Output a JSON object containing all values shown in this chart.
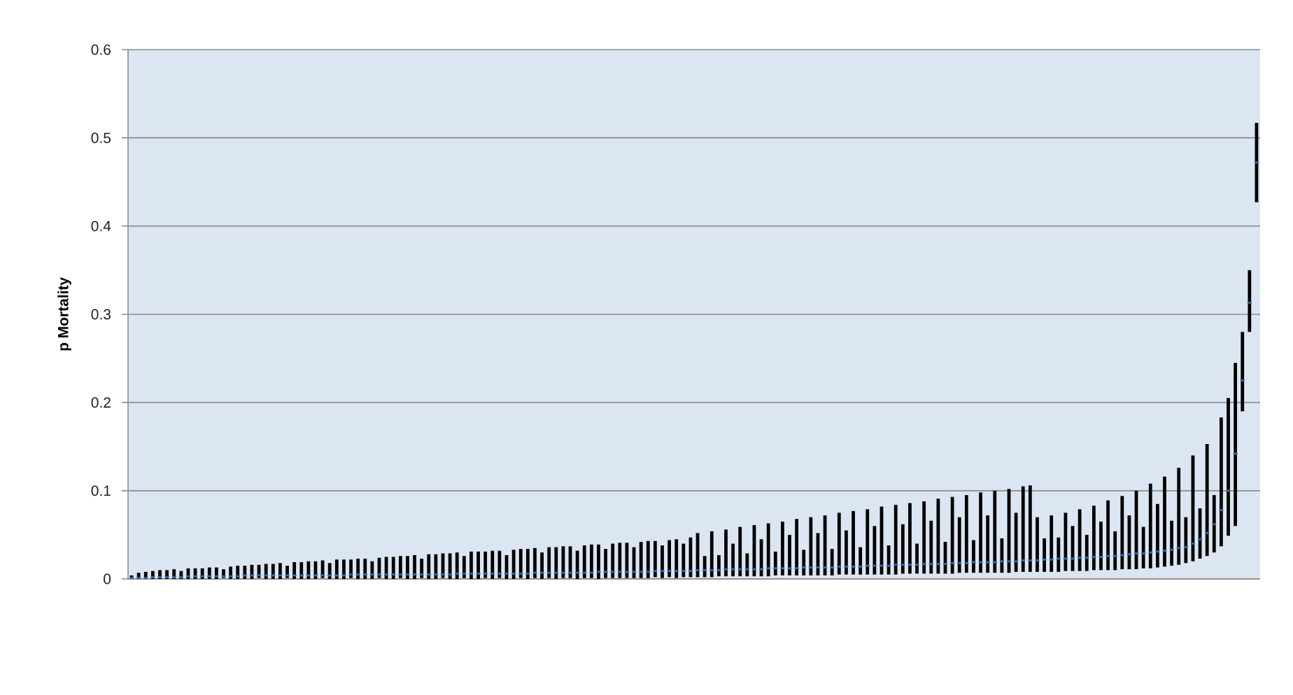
{
  "chart_data": {
    "type": "scatter",
    "ylabel": "p Mortality",
    "categories": [
      null,
      null,
      null,
      null,
      null,
      null,
      null,
      null,
      null,
      null,
      null,
      null,
      null,
      null,
      null,
      null,
      null,
      null,
      null,
      null,
      null,
      null,
      null,
      null,
      null,
      null,
      null,
      null,
      null,
      null,
      null,
      null,
      null,
      null,
      null,
      null,
      null,
      null,
      null,
      null,
      null,
      null,
      null,
      null,
      null,
      null,
      null,
      null,
      null,
      null,
      null,
      null,
      null,
      null,
      null,
      null,
      null,
      null,
      null,
      null,
      null,
      null,
      null,
      null,
      null,
      null,
      null,
      null,
      null,
      null,
      null,
      null,
      null,
      null,
      null,
      null,
      null,
      null,
      null,
      null,
      null,
      null,
      null,
      null,
      null,
      null,
      null,
      null,
      null,
      null,
      null,
      null,
      null,
      null,
      null,
      null,
      null,
      null,
      null,
      null,
      null,
      null,
      null,
      null,
      null,
      null,
      null,
      null,
      null,
      null,
      null,
      null,
      null,
      null,
      null,
      null,
      null,
      null,
      null,
      null,
      null,
      null,
      null,
      null,
      null,
      null,
      null,
      null,
      null,
      null,
      null,
      null,
      null,
      null,
      null,
      null,
      null,
      null,
      null,
      null,
      null,
      null,
      null,
      null,
      null,
      null,
      null,
      null,
      null,
      null,
      null,
      null,
      null,
      null,
      null,
      null,
      null,
      null,
      null,
      null
    ],
    "values": [
      0.001,
      0.001,
      0.001,
      0.002,
      0.002,
      0.002,
      0.002,
      0.002,
      0.003,
      0.003,
      0.003,
      0.003,
      0.003,
      0.003,
      0.003,
      0.003,
      0.004,
      0.004,
      0.004,
      0.004,
      0.004,
      0.004,
      0.004,
      0.004,
      0.004,
      0.004,
      0.004,
      0.004,
      0.004,
      0.004,
      0.004,
      0.005,
      0.005,
      0.005,
      0.005,
      0.005,
      0.005,
      0.005,
      0.005,
      0.005,
      0.005,
      0.005,
      0.005,
      0.005,
      0.005,
      0.005,
      0.006,
      0.006,
      0.006,
      0.006,
      0.006,
      0.006,
      0.006,
      0.006,
      0.006,
      0.006,
      0.006,
      0.007,
      0.007,
      0.007,
      0.007,
      0.007,
      0.007,
      0.007,
      0.007,
      0.007,
      0.008,
      0.008,
      0.008,
      0.008,
      0.008,
      0.008,
      0.008,
      0.008,
      0.009,
      0.009,
      0.009,
      0.009,
      0.009,
      0.009,
      0.01,
      0.01,
      0.01,
      0.01,
      0.011,
      0.011,
      0.011,
      0.011,
      0.011,
      0.011,
      0.012,
      0.012,
      0.012,
      0.012,
      0.012,
      0.013,
      0.013,
      0.013,
      0.013,
      0.013,
      0.014,
      0.014,
      0.014,
      0.014,
      0.015,
      0.015,
      0.015,
      0.015,
      0.016,
      0.016,
      0.016,
      0.016,
      0.017,
      0.017,
      0.017,
      0.017,
      0.018,
      0.018,
      0.018,
      0.019,
      0.019,
      0.019,
      0.019,
      0.02,
      0.02,
      0.02,
      0.021,
      0.021,
      0.021,
      0.022,
      0.022,
      0.023,
      0.023,
      0.023,
      0.024,
      0.024,
      0.025,
      0.025,
      0.026,
      0.026,
      0.027,
      0.028,
      0.029,
      0.029,
      0.03,
      0.031,
      0.032,
      0.033,
      0.035,
      0.036,
      0.04,
      0.045,
      0.052,
      0.062,
      0.078,
      0.1,
      0.142,
      0.225,
      0.313,
      0.472
    ],
    "errors": [
      [
        0,
        0.004
      ],
      [
        0,
        0.007
      ],
      [
        0,
        0.008
      ],
      [
        0,
        0.009
      ],
      [
        0,
        0.01
      ],
      [
        0,
        0.01
      ],
      [
        0,
        0.011
      ],
      [
        0,
        0.009
      ],
      [
        0,
        0.012
      ],
      [
        0,
        0.012
      ],
      [
        0,
        0.012
      ],
      [
        0,
        0.013
      ],
      [
        0,
        0.013
      ],
      [
        0.001,
        0.011
      ],
      [
        0,
        0.014
      ],
      [
        0,
        0.015
      ],
      [
        0,
        0.015
      ],
      [
        0,
        0.016
      ],
      [
        0.001,
        0.016
      ],
      [
        0,
        0.017
      ],
      [
        0,
        0.017
      ],
      [
        0,
        0.018
      ],
      [
        0.001,
        0.015
      ],
      [
        0,
        0.019
      ],
      [
        0,
        0.019
      ],
      [
        0,
        0.02
      ],
      [
        0,
        0.02
      ],
      [
        0.001,
        0.021
      ],
      [
        0,
        0.018
      ],
      [
        0,
        0.022
      ],
      [
        0,
        0.022
      ],
      [
        0.001,
        0.022
      ],
      [
        0,
        0.023
      ],
      [
        0,
        0.023
      ],
      [
        0,
        0.02
      ],
      [
        0.001,
        0.024
      ],
      [
        0,
        0.025
      ],
      [
        0,
        0.025
      ],
      [
        0.001,
        0.026
      ],
      [
        0,
        0.026
      ],
      [
        0,
        0.027
      ],
      [
        0.001,
        0.023
      ],
      [
        0,
        0.028
      ],
      [
        0,
        0.028
      ],
      [
        0.001,
        0.029
      ],
      [
        0,
        0.029
      ],
      [
        0,
        0.03
      ],
      [
        0.001,
        0.026
      ],
      [
        0,
        0.031
      ],
      [
        0,
        0.031
      ],
      [
        0.001,
        0.031
      ],
      [
        0,
        0.032
      ],
      [
        0.001,
        0.032
      ],
      [
        0,
        0.027
      ],
      [
        0,
        0.033
      ],
      [
        0.001,
        0.034
      ],
      [
        0,
        0.034
      ],
      [
        0.001,
        0.035
      ],
      [
        0,
        0.03
      ],
      [
        0.001,
        0.036
      ],
      [
        0,
        0.036
      ],
      [
        0.001,
        0.037
      ],
      [
        0.001,
        0.037
      ],
      [
        0,
        0.032
      ],
      [
        0.001,
        0.038
      ],
      [
        0.001,
        0.039
      ],
      [
        0,
        0.039
      ],
      [
        0.001,
        0.034
      ],
      [
        0.001,
        0.04
      ],
      [
        0.001,
        0.041
      ],
      [
        0.001,
        0.041
      ],
      [
        0.001,
        0.036
      ],
      [
        0.001,
        0.042
      ],
      [
        0.001,
        0.043
      ],
      [
        0.002,
        0.043
      ],
      [
        0.001,
        0.038
      ],
      [
        0.002,
        0.044
      ],
      [
        0.001,
        0.045
      ],
      [
        0.002,
        0.04
      ],
      [
        0.002,
        0.047
      ],
      [
        0.002,
        0.052
      ],
      [
        0.002,
        0.026
      ],
      [
        0.002,
        0.054
      ],
      [
        0.003,
        0.027
      ],
      [
        0.003,
        0.056
      ],
      [
        0.003,
        0.04
      ],
      [
        0.003,
        0.059
      ],
      [
        0.003,
        0.029
      ],
      [
        0.003,
        0.061
      ],
      [
        0.003,
        0.045
      ],
      [
        0.003,
        0.063
      ],
      [
        0.004,
        0.031
      ],
      [
        0.004,
        0.065
      ],
      [
        0.004,
        0.05
      ],
      [
        0.004,
        0.068
      ],
      [
        0.004,
        0.033
      ],
      [
        0.004,
        0.07
      ],
      [
        0.004,
        0.052
      ],
      [
        0.004,
        0.072
      ],
      [
        0.004,
        0.034
      ],
      [
        0.005,
        0.075
      ],
      [
        0.005,
        0.055
      ],
      [
        0.005,
        0.077
      ],
      [
        0.005,
        0.036
      ],
      [
        0.005,
        0.079
      ],
      [
        0.005,
        0.06
      ],
      [
        0.005,
        0.082
      ],
      [
        0.005,
        0.038
      ],
      [
        0.005,
        0.084
      ],
      [
        0.006,
        0.062
      ],
      [
        0.006,
        0.086
      ],
      [
        0.006,
        0.04
      ],
      [
        0.006,
        0.088
      ],
      [
        0.006,
        0.066
      ],
      [
        0.006,
        0.091
      ],
      [
        0.006,
        0.042
      ],
      [
        0.006,
        0.093
      ],
      [
        0.007,
        0.07
      ],
      [
        0.007,
        0.095
      ],
      [
        0.007,
        0.044
      ],
      [
        0.007,
        0.098
      ],
      [
        0.007,
        0.072
      ],
      [
        0.007,
        0.1
      ],
      [
        0.007,
        0.046
      ],
      [
        0.007,
        0.102
      ],
      [
        0.008,
        0.075
      ],
      [
        0.008,
        0.105
      ],
      [
        0.008,
        0.106
      ],
      [
        0.008,
        0.07
      ],
      [
        0.008,
        0.046
      ],
      [
        0.008,
        0.072
      ],
      [
        0.008,
        0.047
      ],
      [
        0.009,
        0.075
      ],
      [
        0.009,
        0.06
      ],
      [
        0.009,
        0.079
      ],
      [
        0.009,
        0.05
      ],
      [
        0.01,
        0.083
      ],
      [
        0.01,
        0.065
      ],
      [
        0.01,
        0.089
      ],
      [
        0.01,
        0.054
      ],
      [
        0.011,
        0.094
      ],
      [
        0.011,
        0.072
      ],
      [
        0.011,
        0.1
      ],
      [
        0.012,
        0.059
      ],
      [
        0.012,
        0.108
      ],
      [
        0.013,
        0.085
      ],
      [
        0.014,
        0.116
      ],
      [
        0.015,
        0.066
      ],
      [
        0.016,
        0.126
      ],
      [
        0.018,
        0.07
      ],
      [
        0.02,
        0.14
      ],
      [
        0.023,
        0.08
      ],
      [
        0.026,
        0.153
      ],
      [
        0.03,
        0.095
      ],
      [
        0.037,
        0.183
      ],
      [
        0.049,
        0.205
      ],
      [
        0.06,
        0.245
      ],
      [
        0.19,
        0.28
      ],
      [
        0.28,
        0.35
      ],
      [
        0.427,
        0.517
      ]
    ],
    "color": "#3a6ba5",
    "ylim": [
      0,
      0.6
    ],
    "yticks": [
      0,
      0.1,
      0.2,
      0.3,
      0.4,
      0.5,
      0.6
    ],
    "grid": "y",
    "marker": "square",
    "tick_labels": "y"
  }
}
